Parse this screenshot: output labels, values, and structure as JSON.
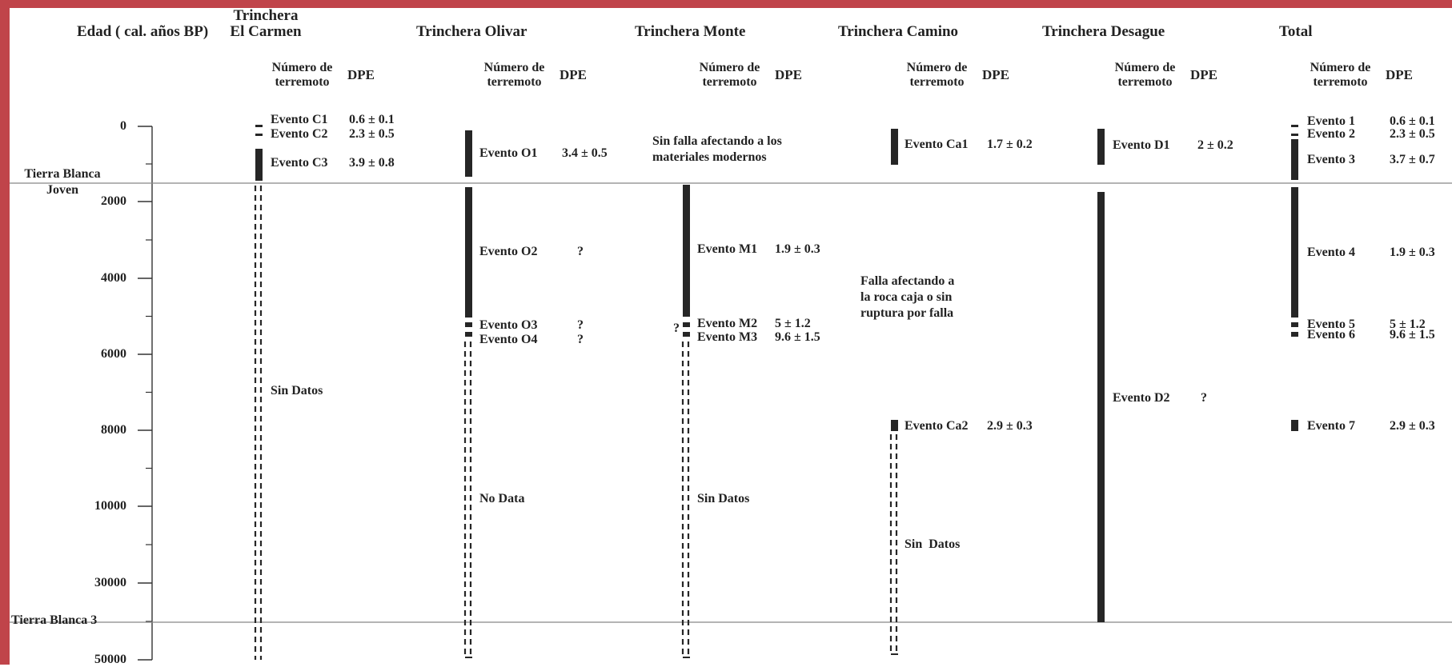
{
  "axis": {
    "title": "Edad ( cal. años BP)",
    "ticks": [
      "0",
      "2000",
      "4000",
      "6000",
      "8000",
      "10000",
      "30000",
      "50000"
    ]
  },
  "layers": [
    {
      "name": "Tierra Blanca Joven"
    },
    {
      "name": "Tierra Blanca 3"
    }
  ],
  "subheaders": {
    "number": "Número de terremoto",
    "dpe": "DPE"
  },
  "trenches": [
    {
      "id": "carmen",
      "title": "Trinchera El Carmen",
      "events": [
        {
          "label": "Evento C1",
          "dpe": "0.6 ± 0.1"
        },
        {
          "label": "Evento C2",
          "dpe": "2.3 ± 0.5"
        },
        {
          "label": "Evento C3",
          "dpe": "3.9 ± 0.8"
        }
      ],
      "notes": [
        "Sin Datos"
      ]
    },
    {
      "id": "olivar",
      "title": "Trinchera Olivar",
      "events": [
        {
          "label": "Evento O1",
          "dpe": "3.4 ± 0.5"
        },
        {
          "label": "Evento O2",
          "dpe": "?"
        },
        {
          "label": "Evento O3",
          "dpe": "?"
        },
        {
          "label": "Evento O4",
          "dpe": "?"
        }
      ],
      "notes": [
        "No Data"
      ]
    },
    {
      "id": "monte",
      "title": "Trinchera Monte",
      "events": [
        {
          "label": "Evento M1",
          "dpe": "1.9 ± 0.3"
        },
        {
          "label": "Evento M2",
          "dpe": "5 ± 1.2"
        },
        {
          "label": "Evento M3",
          "dpe": "9.6 ± 1.5"
        }
      ],
      "notes": [
        "Sin falla afectando a los\nmateriales modernos",
        "Sin Datos",
        "?"
      ]
    },
    {
      "id": "camino",
      "title": "Trinchera Camino",
      "events": [
        {
          "label": "Evento Ca1",
          "dpe": "1.7 ± 0.2"
        },
        {
          "label": "Evento Ca2",
          "dpe": "2.9 ± 0.3"
        }
      ],
      "notes": [
        "Falla afectando a\nla roca caja o sin\nruptura por falla",
        "Sin  Datos"
      ]
    },
    {
      "id": "desague",
      "title": "Trinchera Desague",
      "events": [
        {
          "label": "Evento D1",
          "dpe": "2 ± 0.2"
        },
        {
          "label": "Evento D2",
          "dpe": "?"
        }
      ],
      "notes": []
    },
    {
      "id": "total",
      "title": "Total",
      "events": [
        {
          "label": "Evento 1",
          "dpe": "0.6 ± 0.1"
        },
        {
          "label": "Evento 2",
          "dpe": "2.3 ± 0.5"
        },
        {
          "label": "Evento 3",
          "dpe": "3.7 ± 0.7"
        },
        {
          "label": "Evento 4",
          "dpe": "1.9 ± 0.3"
        },
        {
          "label": "Evento 5",
          "dpe": "5 ± 1.2"
        },
        {
          "label": "Evento 6",
          "dpe": "9.6 ± 1.5"
        },
        {
          "label": "Evento 7",
          "dpe": "2.9 ± 0.3"
        }
      ],
      "notes": []
    }
  ],
  "colors": {
    "bar": "#262626",
    "frame": "#c0444a",
    "line": "#888888",
    "text": "#222222"
  }
}
